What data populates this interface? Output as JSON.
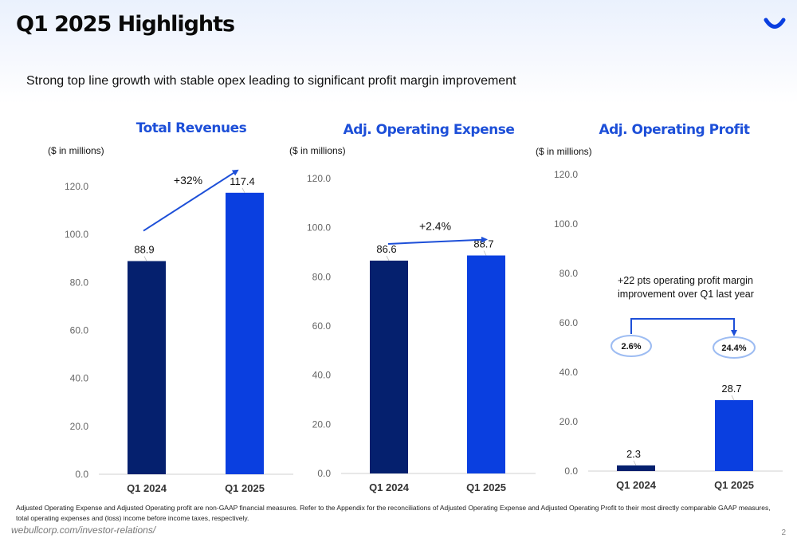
{
  "header": {
    "title": "Q1 2025 Highlights",
    "subtitle": "Strong top line growth with stable opex leading to significant profit margin improvement"
  },
  "brand": {
    "logo_icon": "webull-smile-icon",
    "accent": "#0a3fe0",
    "dark": "#05206e"
  },
  "chart_data": [
    {
      "type": "bar",
      "title": "Total Revenues",
      "unit_label": "($ in millions)",
      "categories": [
        "Q1 2024",
        "Q1 2025"
      ],
      "values": [
        88.9,
        117.4
      ],
      "data_labels": [
        "88.9",
        "117.4"
      ],
      "bar_colors": [
        "#05206e",
        "#0a3fe0"
      ],
      "ylim": [
        0,
        120
      ],
      "yticks": [
        "0.0",
        "20.0",
        "40.0",
        "60.0",
        "80.0",
        "100.0",
        "120.0"
      ],
      "grid": false,
      "annotations": [
        {
          "type": "growth-arrow",
          "text": "+32%"
        }
      ]
    },
    {
      "type": "bar",
      "title": "Adj. Operating Expense",
      "unit_label": "($ in millions)",
      "categories": [
        "Q1 2024",
        "Q1 2025"
      ],
      "values": [
        86.6,
        88.7
      ],
      "data_labels": [
        "86.6",
        "88.7"
      ],
      "bar_colors": [
        "#05206e",
        "#0a3fe0"
      ],
      "ylim": [
        0,
        120
      ],
      "yticks": [
        "0.0",
        "20.0",
        "40.0",
        "60.0",
        "80.0",
        "100.0",
        "120.0"
      ],
      "grid": false,
      "annotations": [
        {
          "type": "growth-arrow",
          "text": "+2.4%"
        }
      ]
    },
    {
      "type": "bar",
      "title": "Adj. Operating Profit",
      "unit_label": "($ in millions)",
      "categories": [
        "Q1 2024",
        "Q1 2025"
      ],
      "values": [
        2.3,
        28.7
      ],
      "data_labels": [
        "2.3",
        "28.7"
      ],
      "bar_colors": [
        "#05206e",
        "#0a3fe0"
      ],
      "ylim": [
        0,
        120
      ],
      "yticks": [
        "0.0",
        "20.0",
        "40.0",
        "60.0",
        "80.0",
        "100.0",
        "120.0"
      ],
      "grid": false,
      "annotations": [
        {
          "type": "text",
          "lines": [
            "+22 pts operating profit margin",
            "improvement over Q1 last year"
          ]
        },
        {
          "type": "margin-bubbles",
          "values": [
            "2.6%",
            "24.4%"
          ]
        }
      ]
    }
  ],
  "footer": {
    "footnote": "Adjusted Operating Expense and Adjusted Operating profit are non-GAAP financial measures.  Refer to the Appendix for the reconciliations of Adjusted Operating Expense and Adjusted Operating Profit to their most directly comparable GAAP measures, total operating expenses and (loss) income before income taxes, respectively.",
    "source": "webullcorp.com/investor-relations/",
    "page_number": "2"
  }
}
